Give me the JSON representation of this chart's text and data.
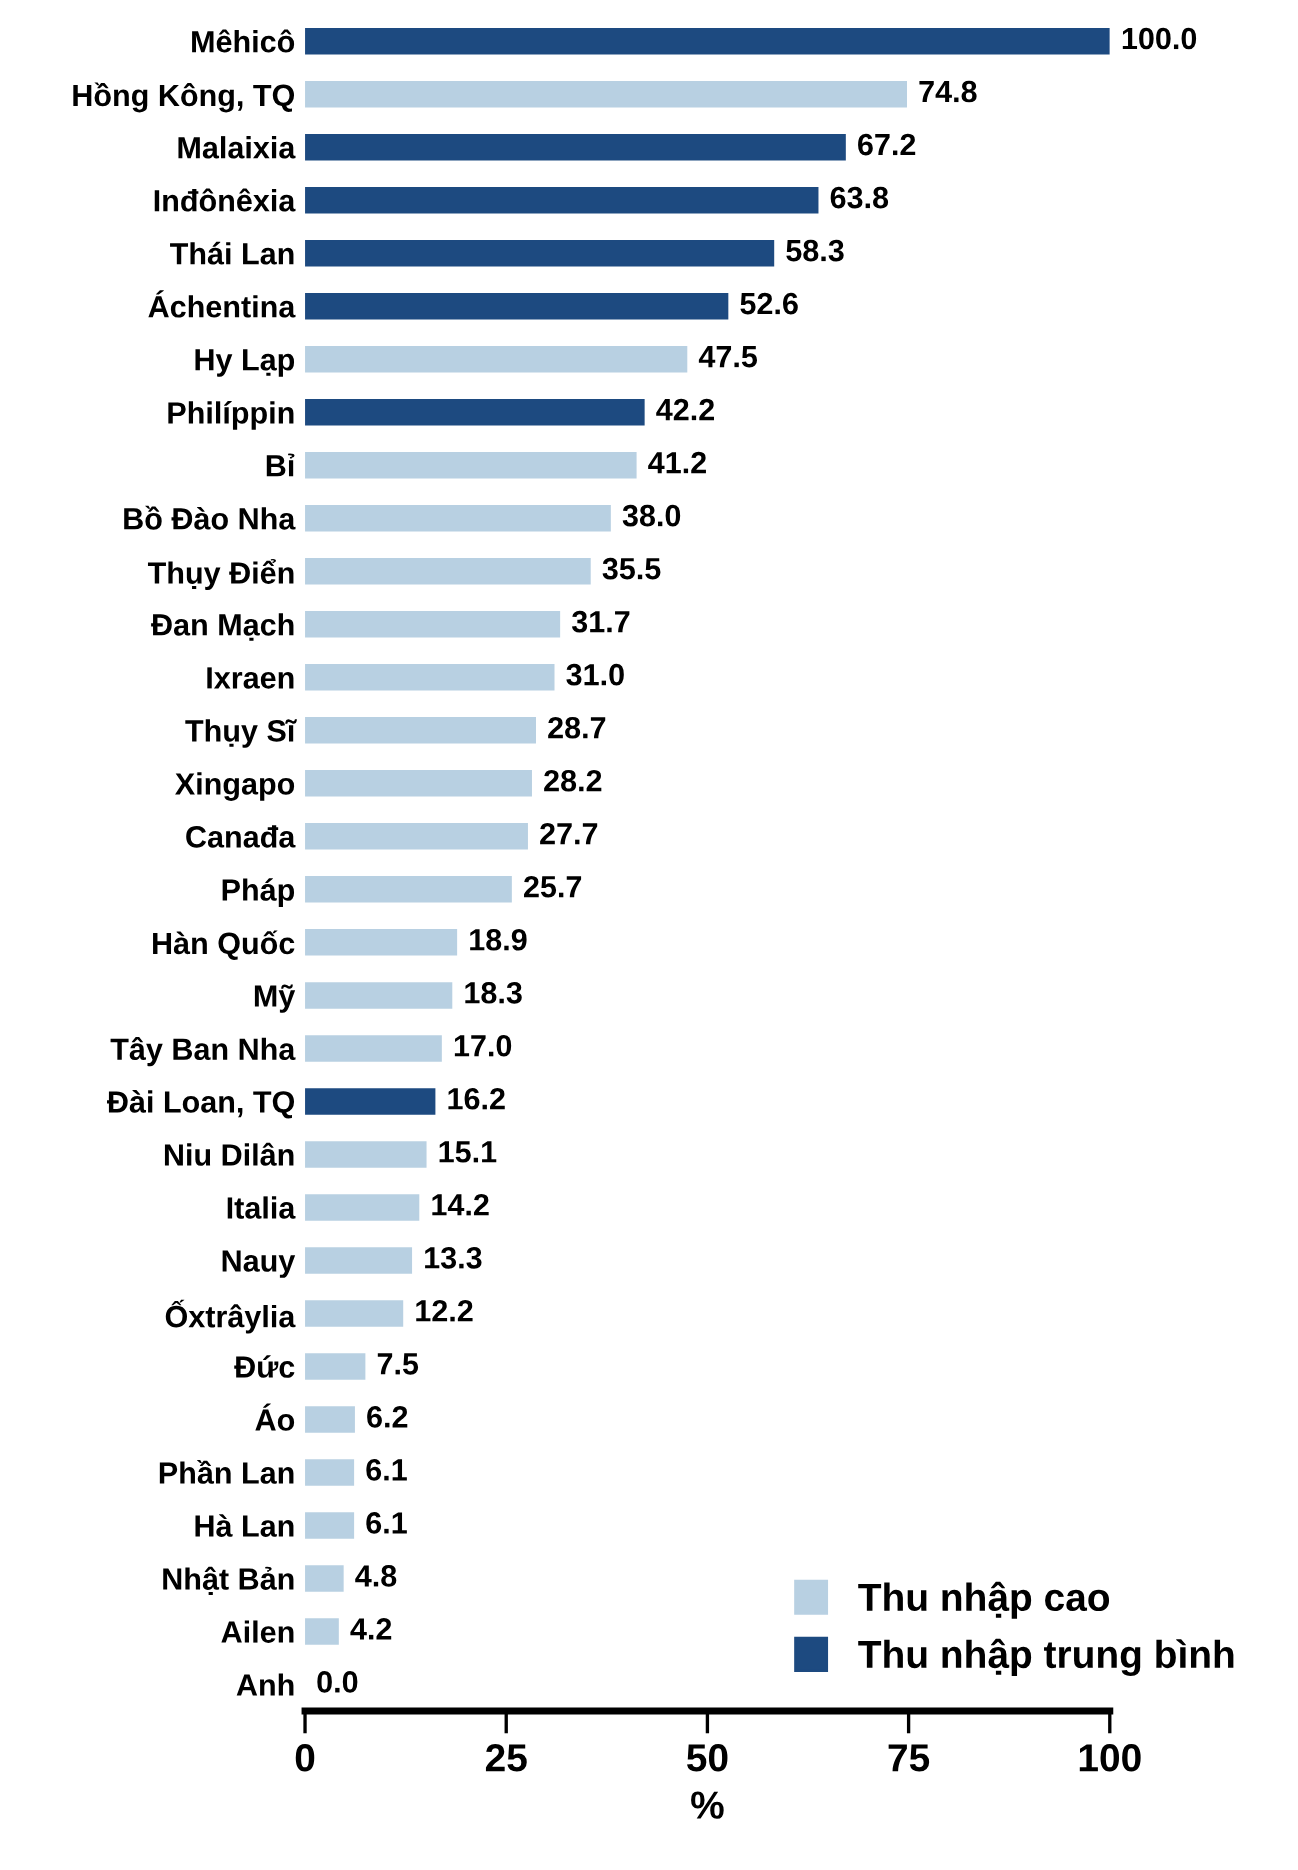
{
  "chart_data": {
    "type": "bar",
    "orientation": "horizontal",
    "xlabel": "%",
    "categories": [
      "Mêhicô",
      "Hồng Kông, TQ",
      "Malaixia",
      "Inđônêxia",
      "Thái Lan",
      "Áchentina",
      "Hy Lạp",
      "Philíppin",
      "Bỉ",
      "Bồ Đào Nha",
      "Thụy Điển",
      "Đan Mạch",
      "Ixraen",
      "Thụy Sĩ",
      "Xingapo",
      "Canađa",
      "Pháp",
      "Hàn Quốc",
      "Mỹ",
      "Tây Ban Nha",
      "Đài Loan, TQ",
      "Niu Dilân",
      "Italia",
      "Nauy",
      "Ốxtrâylia",
      "Đức",
      "Áo",
      "Phần Lan",
      "Hà Lan",
      "Nhật Bản",
      "Ailen",
      "Anh"
    ],
    "series": [
      {
        "name": "Thu nhập cao",
        "color": "#b8d0e2",
        "values": [
          null,
          74.8,
          null,
          null,
          null,
          null,
          47.5,
          null,
          41.2,
          38.0,
          35.5,
          31.7,
          31.0,
          28.7,
          28.2,
          27.7,
          25.7,
          18.9,
          18.3,
          17.0,
          null,
          15.1,
          14.2,
          13.3,
          12.2,
          7.5,
          6.2,
          6.1,
          6.1,
          4.8,
          4.2,
          0.0
        ],
        "value_labels": [
          null,
          "74.8",
          null,
          null,
          null,
          null,
          "47.5",
          null,
          "41.2",
          "38.0",
          "35.5",
          "31.7",
          "31.0",
          "28.7",
          "28.2",
          "27.7",
          "25.7",
          "18.9",
          "18.3",
          "17.0",
          null,
          "15.1",
          "14.2",
          "13.3",
          "12.2",
          "7.5",
          "6.2",
          "6.1",
          "6.1",
          "4.8",
          "4.2",
          "0.0"
        ]
      },
      {
        "name": "Thu nhập trung bình",
        "color": "#1d4a80",
        "values": [
          100.0,
          null,
          67.2,
          63.8,
          58.3,
          52.6,
          null,
          42.2,
          null,
          null,
          null,
          null,
          null,
          null,
          null,
          null,
          null,
          null,
          null,
          null,
          16.2,
          null,
          null,
          null,
          null,
          null,
          null,
          null,
          null,
          null,
          null,
          null
        ],
        "value_labels": [
          "100.0",
          null,
          "67.2",
          "63.8",
          "58.3",
          "52.6",
          null,
          "42.2",
          null,
          null,
          null,
          null,
          null,
          null,
          null,
          null,
          null,
          null,
          null,
          null,
          "16.2",
          null,
          null,
          null,
          null,
          null,
          null,
          null,
          null,
          null,
          null,
          null
        ]
      }
    ],
    "xlim": [
      0,
      100
    ],
    "xticks": [
      0,
      25,
      50,
      75,
      100
    ],
    "legend": "bottom right"
  }
}
